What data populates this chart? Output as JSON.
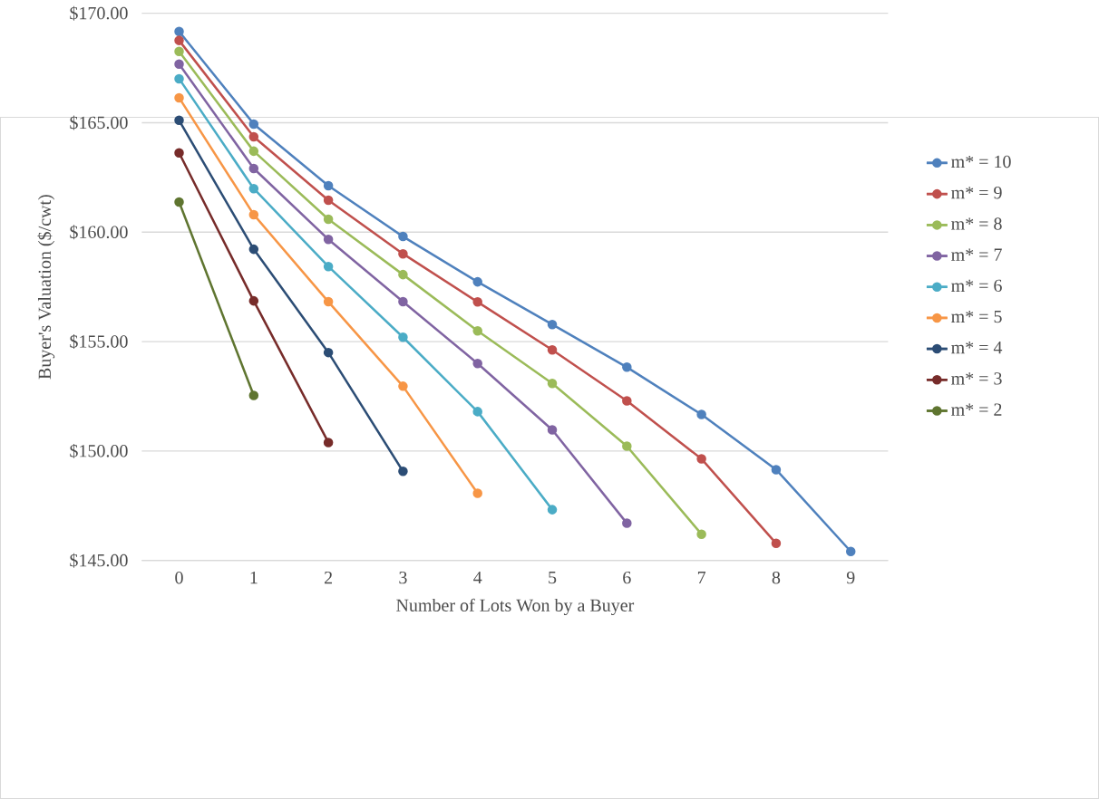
{
  "chart_data": {
    "type": "line",
    "xlabel": "Number of Lots Won  by a Buyer",
    "ylabel": "Buyer's Valuation ($/cwt)",
    "categories": [
      "0",
      "1",
      "2",
      "3",
      "4",
      "5",
      "6",
      "7",
      "8",
      "9"
    ],
    "ylim": [
      145,
      170
    ],
    "yticks": [
      {
        "value": 145,
        "label": "$145.00"
      },
      {
        "value": 150,
        "label": "$150.00"
      },
      {
        "value": 155,
        "label": "$155.00"
      },
      {
        "value": 160,
        "label": "$160.00"
      },
      {
        "value": 165,
        "label": "$165.00"
      },
      {
        "value": 170,
        "label": "$170.00"
      }
    ],
    "grid": "y",
    "legend": "right",
    "marker": "circle",
    "line_style": "solid",
    "series": [
      {
        "name": "m* = 10",
        "color": "#4f81bd",
        "values": [
          169.17,
          164.94,
          162.12,
          159.8,
          157.73,
          155.78,
          153.83,
          151.67,
          149.15,
          145.41
        ]
      },
      {
        "name": "m* = 9",
        "color": "#c0504d",
        "values": [
          168.76,
          164.36,
          161.46,
          159.01,
          156.81,
          154.62,
          152.29,
          149.64,
          145.78,
          null
        ]
      },
      {
        "name": "m* = 8",
        "color": "#9bbb59",
        "values": [
          168.26,
          163.7,
          160.59,
          158.06,
          155.49,
          153.09,
          150.22,
          146.2,
          null,
          null
        ]
      },
      {
        "name": "m* = 7",
        "color": "#8064a2",
        "values": [
          167.68,
          162.91,
          159.67,
          156.82,
          154.0,
          150.97,
          146.7,
          null,
          null,
          null
        ]
      },
      {
        "name": "m* = 6",
        "color": "#4bacc6",
        "values": [
          167.01,
          161.99,
          158.43,
          155.2,
          151.8,
          147.32,
          null,
          null,
          null,
          null
        ]
      },
      {
        "name": "m* = 5",
        "color": "#f79646",
        "values": [
          166.14,
          160.8,
          156.82,
          152.96,
          148.07,
          null,
          null,
          null,
          null,
          null
        ]
      },
      {
        "name": "m* = 4",
        "color": "#2c4d75",
        "values": [
          165.11,
          159.22,
          154.5,
          149.07,
          null,
          null,
          null,
          null,
          null,
          null
        ]
      },
      {
        "name": "m* = 3",
        "color": "#772c2a",
        "values": [
          163.62,
          156.86,
          150.39,
          null,
          null,
          null,
          null,
          null,
          null,
          null
        ]
      },
      {
        "name": "m* = 2",
        "color": "#5f7530",
        "values": [
          161.38,
          152.54,
          null,
          null,
          null,
          null,
          null,
          null,
          null,
          null
        ]
      }
    ]
  }
}
